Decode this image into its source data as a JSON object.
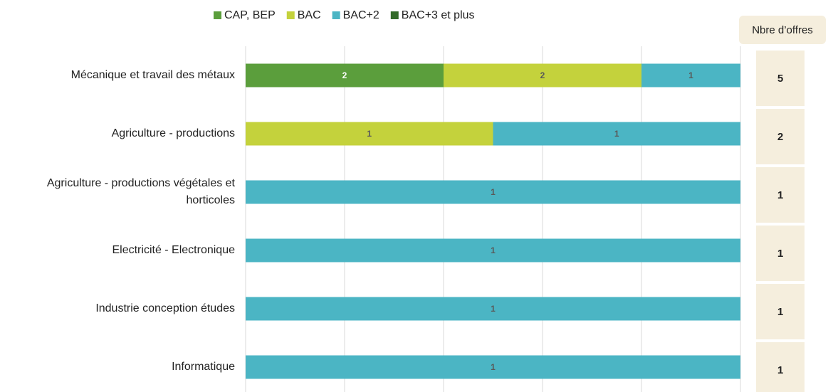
{
  "chart_data": {
    "type": "stacked_bar_100",
    "categories": [
      "Mécanique et travail des métaux",
      "Agriculture - productions",
      "Agriculture - productions végétales et horticoles",
      "Electricité - Electronique",
      "Industrie conception études",
      "Informatique"
    ],
    "series": [
      {
        "name": "CAP, BEP",
        "color": "#5b9e3c",
        "values": [
          2,
          null,
          null,
          null,
          null,
          null
        ]
      },
      {
        "name": "BAC",
        "color": "#c4d23c",
        "values": [
          2,
          1,
          null,
          null,
          null,
          null
        ]
      },
      {
        "name": "BAC+2",
        "color": "#4bb5c4",
        "values": [
          1,
          1,
          1,
          1,
          1,
          1
        ]
      },
      {
        "name": "BAC+3 et plus",
        "color": "#336b29",
        "values": [
          null,
          null,
          null,
          null,
          null,
          null
        ]
      }
    ],
    "xlim": [
      0,
      100
    ],
    "xticks": [
      0,
      20,
      40,
      60,
      80,
      100
    ],
    "grid": true,
    "totals_header": "Nbre d’offres",
    "totals": [
      5,
      2,
      1,
      1,
      1,
      1
    ]
  }
}
